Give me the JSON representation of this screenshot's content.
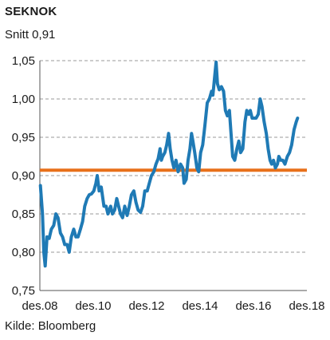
{
  "chart_data": {
    "type": "line",
    "title": "SEKNOK",
    "subtitle": "Snitt 0,91",
    "source": "Kilde: Bloomberg",
    "ylim": [
      0.75,
      1.05
    ],
    "xlim": [
      2008.9,
      2018.9
    ],
    "grid": "horizontal dashed",
    "y_ticks": [
      {
        "value": 1.05,
        "label": "1,05"
      },
      {
        "value": 1.0,
        "label": "1,00"
      },
      {
        "value": 0.95,
        "label": "0,95"
      },
      {
        "value": 0.9,
        "label": "0,90"
      },
      {
        "value": 0.85,
        "label": "0,85"
      },
      {
        "value": 0.8,
        "label": "0,80"
      },
      {
        "value": 0.75,
        "label": "0,75"
      }
    ],
    "x_ticks": [
      {
        "value": 2008.9,
        "label": "des.08"
      },
      {
        "value": 2010.9,
        "label": "des.10"
      },
      {
        "value": 2012.9,
        "label": "des.12"
      },
      {
        "value": 2014.9,
        "label": "des.14"
      },
      {
        "value": 2016.9,
        "label": "des.16"
      },
      {
        "value": 2018.9,
        "label": "des.18"
      }
    ],
    "average": {
      "value": 0.907,
      "color": "#e8701a"
    },
    "series": [
      {
        "color": "#1f7ab5",
        "points": [
          [
            2008.92,
            0.887
          ],
          [
            2009.0,
            0.85
          ],
          [
            2009.05,
            0.8
          ],
          [
            2009.1,
            0.782
          ],
          [
            2009.17,
            0.82
          ],
          [
            2009.25,
            0.818
          ],
          [
            2009.33,
            0.83
          ],
          [
            2009.42,
            0.835
          ],
          [
            2009.5,
            0.85
          ],
          [
            2009.58,
            0.845
          ],
          [
            2009.67,
            0.825
          ],
          [
            2009.75,
            0.82
          ],
          [
            2009.83,
            0.81
          ],
          [
            2009.92,
            0.81
          ],
          [
            2010.0,
            0.8
          ],
          [
            2010.08,
            0.82
          ],
          [
            2010.17,
            0.83
          ],
          [
            2010.25,
            0.82
          ],
          [
            2010.33,
            0.82
          ],
          [
            2010.42,
            0.83
          ],
          [
            2010.5,
            0.84
          ],
          [
            2010.58,
            0.86
          ],
          [
            2010.67,
            0.87
          ],
          [
            2010.75,
            0.875
          ],
          [
            2010.83,
            0.876
          ],
          [
            2010.92,
            0.88
          ],
          [
            2011.0,
            0.89
          ],
          [
            2011.05,
            0.9
          ],
          [
            2011.12,
            0.88
          ],
          [
            2011.2,
            0.885
          ],
          [
            2011.3,
            0.86
          ],
          [
            2011.38,
            0.86
          ],
          [
            2011.45,
            0.85
          ],
          [
            2011.55,
            0.86
          ],
          [
            2011.62,
            0.85
          ],
          [
            2011.7,
            0.855
          ],
          [
            2011.78,
            0.87
          ],
          [
            2011.85,
            0.86
          ],
          [
            2011.92,
            0.85
          ],
          [
            2012.0,
            0.845
          ],
          [
            2012.08,
            0.86
          ],
          [
            2012.17,
            0.848
          ],
          [
            2012.25,
            0.86
          ],
          [
            2012.33,
            0.875
          ],
          [
            2012.42,
            0.88
          ],
          [
            2012.5,
            0.865
          ],
          [
            2012.58,
            0.855
          ],
          [
            2012.67,
            0.852
          ],
          [
            2012.75,
            0.86
          ],
          [
            2012.83,
            0.88
          ],
          [
            2012.92,
            0.88
          ],
          [
            2013.0,
            0.89
          ],
          [
            2013.08,
            0.9
          ],
          [
            2013.17,
            0.905
          ],
          [
            2013.25,
            0.915
          ],
          [
            2013.33,
            0.922
          ],
          [
            2013.4,
            0.935
          ],
          [
            2013.45,
            0.92
          ],
          [
            2013.5,
            0.925
          ],
          [
            2013.58,
            0.93
          ],
          [
            2013.65,
            0.94
          ],
          [
            2013.72,
            0.955
          ],
          [
            2013.78,
            0.935
          ],
          [
            2013.85,
            0.92
          ],
          [
            2013.92,
            0.91
          ],
          [
            2014.0,
            0.92
          ],
          [
            2014.08,
            0.905
          ],
          [
            2014.17,
            0.915
          ],
          [
            2014.25,
            0.91
          ],
          [
            2014.3,
            0.89
          ],
          [
            2014.38,
            0.895
          ],
          [
            2014.45,
            0.92
          ],
          [
            2014.52,
            0.935
          ],
          [
            2014.58,
            0.955
          ],
          [
            2014.63,
            0.945
          ],
          [
            2014.7,
            0.93
          ],
          [
            2014.78,
            0.91
          ],
          [
            2014.85,
            0.905
          ],
          [
            2014.92,
            0.93
          ],
          [
            2015.0,
            0.94
          ],
          [
            2015.08,
            0.965
          ],
          [
            2015.17,
            0.995
          ],
          [
            2015.25,
            1.0
          ],
          [
            2015.33,
            1.01
          ],
          [
            2015.38,
            1.005
          ],
          [
            2015.45,
            1.03
          ],
          [
            2015.5,
            1.048
          ],
          [
            2015.55,
            1.02
          ],
          [
            2015.62,
            1.012
          ],
          [
            2015.7,
            1.016
          ],
          [
            2015.78,
            1.01
          ],
          [
            2015.85,
            0.985
          ],
          [
            2015.92,
            0.978
          ],
          [
            2016.0,
            0.985
          ],
          [
            2016.05,
            0.96
          ],
          [
            2016.12,
            0.925
          ],
          [
            2016.2,
            0.92
          ],
          [
            2016.28,
            0.935
          ],
          [
            2016.35,
            0.945
          ],
          [
            2016.42,
            0.93
          ],
          [
            2016.5,
            0.935
          ],
          [
            2016.58,
            0.97
          ],
          [
            2016.65,
            0.985
          ],
          [
            2016.72,
            0.98
          ],
          [
            2016.78,
            0.985
          ],
          [
            2016.85,
            0.975
          ],
          [
            2016.92,
            0.975
          ],
          [
            2017.0,
            0.975
          ],
          [
            2017.08,
            0.98
          ],
          [
            2017.15,
            1.0
          ],
          [
            2017.22,
            0.99
          ],
          [
            2017.3,
            0.97
          ],
          [
            2017.38,
            0.955
          ],
          [
            2017.45,
            0.935
          ],
          [
            2017.52,
            0.92
          ],
          [
            2017.58,
            0.915
          ],
          [
            2017.65,
            0.92
          ],
          [
            2017.72,
            0.91
          ],
          [
            2017.8,
            0.915
          ],
          [
            2017.85,
            0.925
          ],
          [
            2017.92,
            0.92
          ],
          [
            2018.0,
            0.92
          ],
          [
            2018.08,
            0.915
          ],
          [
            2018.17,
            0.925
          ],
          [
            2018.25,
            0.93
          ],
          [
            2018.33,
            0.94
          ],
          [
            2018.42,
            0.96
          ],
          [
            2018.5,
            0.97
          ],
          [
            2018.55,
            0.975
          ]
        ]
      }
    ]
  }
}
